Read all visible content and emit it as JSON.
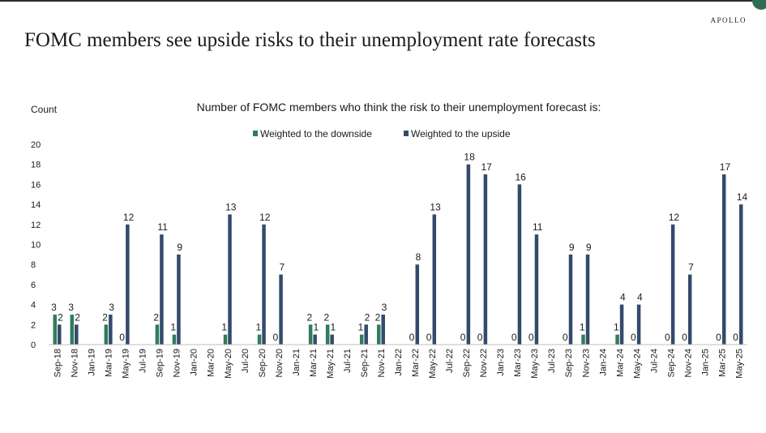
{
  "page": {
    "title": "FOMC members see upside risks to their unemployment rate forecasts",
    "logo": "APOLLO"
  },
  "colors": {
    "downside": "#2e7d5b",
    "upside": "#344a6b",
    "text": "#1a1a1a"
  },
  "chart_data": {
    "type": "bar",
    "title": "Number of FOMC members who think the risk to their unemployment forecast is:",
    "ylabel": "Count",
    "xlabel": "",
    "ylim": [
      0,
      20
    ],
    "yticks": [
      0,
      2,
      4,
      6,
      8,
      10,
      12,
      14,
      16,
      18,
      20
    ],
    "legend_position": "top-center",
    "categories": [
      "Sep-18",
      "Nov-18",
      "Jan-19",
      "Mar-19",
      "May-19",
      "Jul-19",
      "Sep-19",
      "Nov-19",
      "Jan-20",
      "Mar-20",
      "May-20",
      "Jul-20",
      "Sep-20",
      "Nov-20",
      "Jan-21",
      "Mar-21",
      "May-21",
      "Jul-21",
      "Sep-21",
      "Nov-21",
      "Jan-22",
      "Mar-22",
      "May-22",
      "Jul-22",
      "Sep-22",
      "Nov-22",
      "Jan-23",
      "Mar-23",
      "May-23",
      "Jul-23",
      "Sep-23",
      "Nov-23",
      "Jan-24",
      "Mar-24",
      "May-24",
      "Jul-24",
      "Sep-24",
      "Nov-24",
      "Jan-25",
      "Mar-25",
      "May-25"
    ],
    "series": [
      {
        "name": "Weighted to the downside",
        "values": [
          3,
          3,
          null,
          2,
          0,
          null,
          2,
          1,
          null,
          null,
          1,
          null,
          1,
          0,
          null,
          2,
          2,
          null,
          1,
          2,
          null,
          0,
          0,
          null,
          0,
          0,
          null,
          0,
          0,
          null,
          0,
          1,
          null,
          1,
          0,
          null,
          0,
          0,
          null,
          0,
          0
        ]
      },
      {
        "name": "Weighted to the upside",
        "values": [
          2,
          2,
          null,
          3,
          12,
          null,
          11,
          9,
          null,
          null,
          13,
          null,
          12,
          7,
          null,
          1,
          1,
          null,
          2,
          3,
          null,
          8,
          13,
          null,
          18,
          17,
          null,
          16,
          11,
          null,
          9,
          9,
          null,
          4,
          4,
          null,
          12,
          7,
          null,
          17,
          14
        ]
      }
    ]
  }
}
